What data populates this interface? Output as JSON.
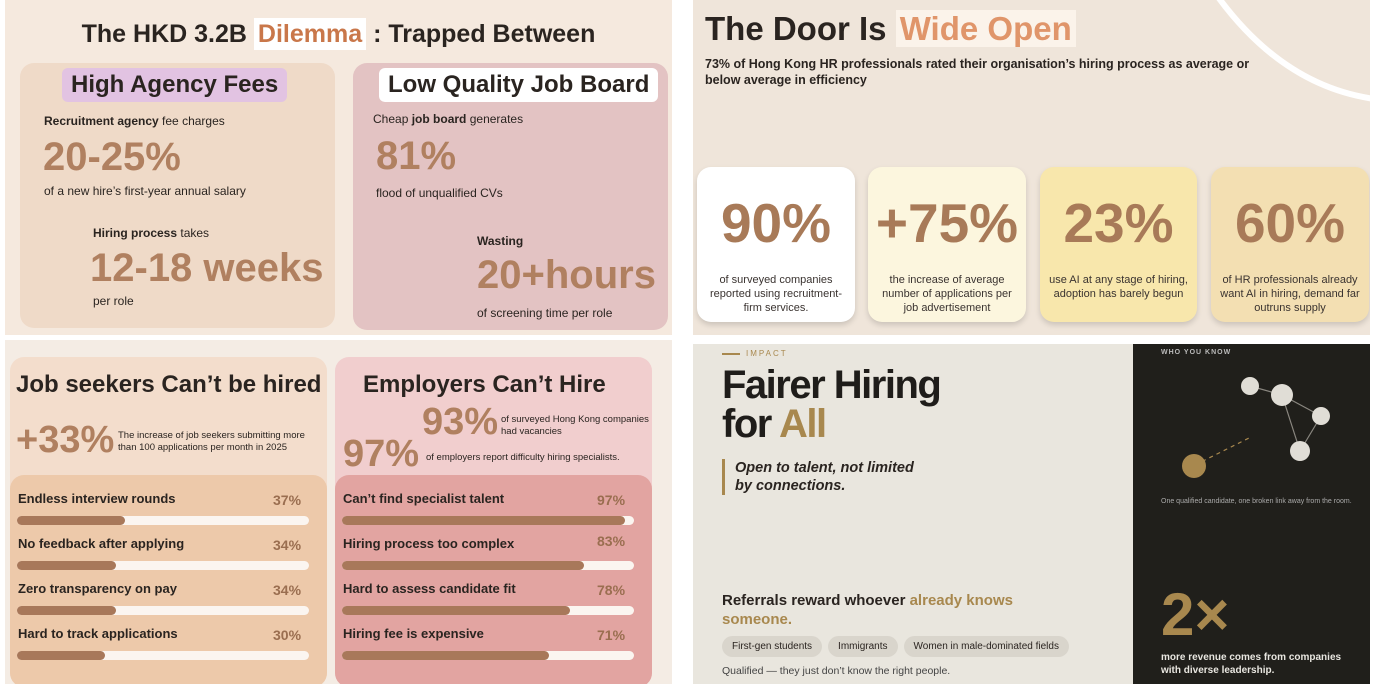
{
  "dilemma": {
    "title_pre": "The HKD 3.2B",
    "title_highlight": "Dilemma",
    "title_post": ": Trapped Between",
    "agency": {
      "heading": "High Agency Fees",
      "line1_bold": "Recruitment agency",
      "line1_rest": "fee charges",
      "stat1": "20-25%",
      "stat1_caption": "of a new hire’s first-year annual salary",
      "line2_bold": "Hiring process",
      "line2_rest": "takes",
      "stat2": "12-18 weeks",
      "stat2_caption": "per role"
    },
    "job_board": {
      "heading": "Low Quality Job Board",
      "line1_pre": "Cheap",
      "line1_bold": "job board",
      "line1_post": "generates",
      "stat1": "81%",
      "stat1_caption": "flood of unqualified CVs",
      "line2": "Wasting",
      "stat2": "20+hours",
      "stat2_caption": "of screening time per role"
    }
  },
  "door": {
    "title_pre": "The Door Is",
    "title_highlight": "Wide Open",
    "subtitle": "73% of Hong Kong HR professionals rated their organisation’s hiring process as average or below average in efficiency",
    "cards": [
      {
        "stat": "90%",
        "caption": "of surveyed companies reported using recruitment-firm services."
      },
      {
        "stat": "+75%",
        "caption": "the increase of average number of applications per job advertisement"
      },
      {
        "stat": "23%",
        "caption": "use AI at any stage of hiring, adoption has barely begun"
      },
      {
        "stat": "60%",
        "caption": "of HR professionals already want AI in hiring, demand far outruns supply"
      }
    ]
  },
  "seekers": {
    "title": "Job seekers Can’t be hired",
    "stat": "+33%",
    "stat_caption": "The increase of job seekers submitting more than 100 applications per month in 2025",
    "bars": {
      "xlim": [
        0,
        100
      ],
      "labels": [
        "Endless interview rounds",
        "No feedback after applying",
        "Zero transparency on pay",
        "Hard to track applications"
      ],
      "values": [
        37,
        34,
        34,
        30
      ],
      "value_labels": [
        "37%",
        "34%",
        "34%",
        "30%"
      ]
    }
  },
  "employers": {
    "title": "Employers Can’t Hire",
    "stat1": "93%",
    "stat1_caption": "of surveyed Hong Kong companies had vacancies",
    "stat2": "97%",
    "stat2_caption": "of employers report difficulty hiring specialists.",
    "bars": {
      "xlim": [
        0,
        100
      ],
      "labels": [
        "Can’t find specialist talent",
        "Hiring process too complex",
        "Hard to assess candidate fit",
        "Hiring fee is expensive"
      ],
      "values": [
        97,
        83,
        78,
        71
      ],
      "value_labels": [
        "97%",
        "83%",
        "78%",
        "71%"
      ]
    }
  },
  "impact": {
    "eyebrow": "IMPACT",
    "title_line1": "Fairer Hiring",
    "title_line2_pre": "for",
    "title_line2_highlight": "All",
    "quote": "Open to talent, not limited by connections.",
    "referral_pre": "Referrals reward whoever",
    "referral_highlight": "already knows someone.",
    "tags": [
      "First-gen students",
      "Immigrants",
      "Women in male-dominated fields"
    ],
    "note": "Qualified — they just don’t know the right people.",
    "side_eyebrow": "WHO YOU KNOW",
    "side_caption": "One qualified candidate, one broken link away from the room.",
    "side_stat": "2×",
    "side_stat_caption": "more revenue comes from companies with diverse leadership."
  }
}
